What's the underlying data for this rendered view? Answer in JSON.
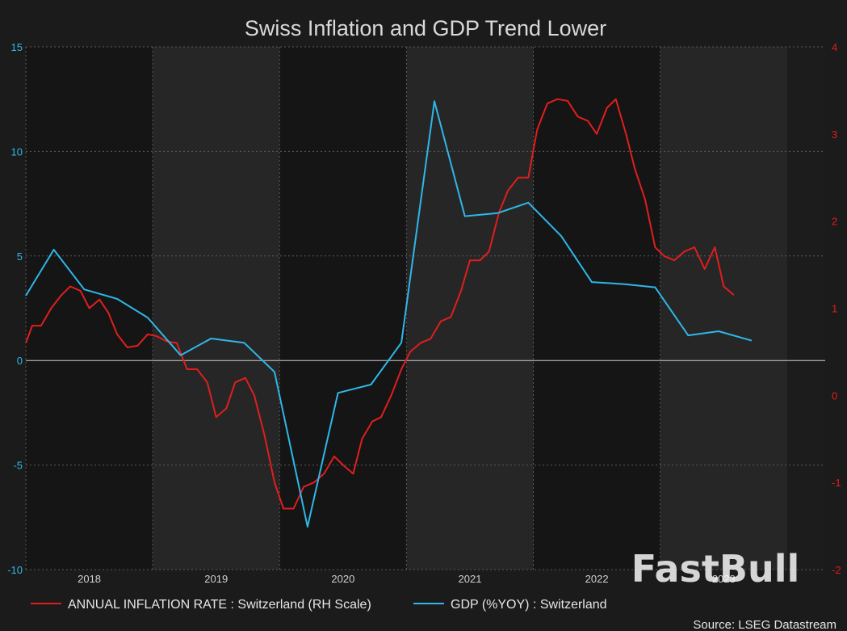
{
  "chart_data": {
    "type": "line",
    "title": "Swiss Inflation and GDP Trend Lower",
    "x_ticks": [
      "2018",
      "2019",
      "2020",
      "2021",
      "2022",
      "2023"
    ],
    "y_left": {
      "ticks": [
        "15",
        "10",
        "5",
        "0",
        "-5",
        "-10"
      ],
      "range": [
        -10,
        15
      ],
      "color": "#2fb7e8"
    },
    "y_right": {
      "ticks": [
        "4",
        "3",
        "2",
        "1",
        "0",
        "-1",
        "-2"
      ],
      "range": [
        -2,
        4
      ],
      "color": "#e01e1e"
    },
    "x_range": [
      2017.5,
      2023.8
    ],
    "series": [
      {
        "name": "ANNUAL INFLATION RATE : Switzerland (RH Scale)",
        "axis": "right",
        "color": "#e01e1e",
        "points": [
          [
            2017.5,
            0.6
          ],
          [
            2017.55,
            0.8
          ],
          [
            2017.62,
            0.8
          ],
          [
            2017.7,
            1.0
          ],
          [
            2017.78,
            1.15
          ],
          [
            2017.85,
            1.25
          ],
          [
            2017.93,
            1.2
          ],
          [
            2018.0,
            1.0
          ],
          [
            2018.08,
            1.1
          ],
          [
            2018.15,
            0.95
          ],
          [
            2018.22,
            0.7
          ],
          [
            2018.3,
            0.55
          ],
          [
            2018.38,
            0.57
          ],
          [
            2018.46,
            0.7
          ],
          [
            2018.53,
            0.68
          ],
          [
            2018.61,
            0.62
          ],
          [
            2018.69,
            0.6
          ],
          [
            2018.77,
            0.3
          ],
          [
            2018.85,
            0.3
          ],
          [
            2018.93,
            0.15
          ],
          [
            2019.0,
            -0.25
          ],
          [
            2019.08,
            -0.15
          ],
          [
            2019.15,
            0.15
          ],
          [
            2019.23,
            0.2
          ],
          [
            2019.3,
            0.0
          ],
          [
            2019.38,
            -0.45
          ],
          [
            2019.46,
            -1.0
          ],
          [
            2019.53,
            -1.3
          ],
          [
            2019.61,
            -1.3
          ],
          [
            2019.69,
            -1.05
          ],
          [
            2019.77,
            -1.0
          ],
          [
            2019.85,
            -0.9
          ],
          [
            2019.93,
            -0.7
          ],
          [
            2020.0,
            -0.8
          ],
          [
            2020.08,
            -0.9
          ],
          [
            2020.15,
            -0.5
          ],
          [
            2020.23,
            -0.3
          ],
          [
            2020.3,
            -0.25
          ],
          [
            2020.38,
            0.0
          ],
          [
            2020.46,
            0.3
          ],
          [
            2020.53,
            0.5
          ],
          [
            2020.61,
            0.6
          ],
          [
            2020.69,
            0.65
          ],
          [
            2020.77,
            0.85
          ],
          [
            2020.85,
            0.9
          ],
          [
            2020.93,
            1.2
          ],
          [
            2021.0,
            1.55
          ],
          [
            2021.08,
            1.55
          ],
          [
            2021.15,
            1.65
          ],
          [
            2021.23,
            2.1
          ],
          [
            2021.3,
            2.35
          ],
          [
            2021.38,
            2.5
          ],
          [
            2021.46,
            2.5
          ],
          [
            2021.53,
            3.05
          ],
          [
            2021.61,
            3.35
          ],
          [
            2021.69,
            3.4
          ],
          [
            2021.77,
            3.38
          ],
          [
            2021.85,
            3.2
          ],
          [
            2021.93,
            3.15
          ],
          [
            2022.0,
            3.0
          ],
          [
            2022.08,
            3.3
          ],
          [
            2022.15,
            3.4
          ],
          [
            2022.23,
            3.0
          ],
          [
            2022.3,
            2.6
          ],
          [
            2022.38,
            2.25
          ],
          [
            2022.46,
            1.7
          ],
          [
            2022.53,
            1.6
          ],
          [
            2022.61,
            1.55
          ],
          [
            2022.69,
            1.65
          ],
          [
            2022.77,
            1.7
          ],
          [
            2022.85,
            1.45
          ],
          [
            2022.93,
            1.7
          ],
          [
            2023.0,
            1.25
          ],
          [
            2023.08,
            1.15
          ]
        ]
      },
      {
        "name": "GDP (%YOY) : Switzerland",
        "axis": "left",
        "color": "#2fb7e8",
        "points": [
          [
            2017.5,
            3.1
          ],
          [
            2017.72,
            5.3
          ],
          [
            2017.96,
            3.4
          ],
          [
            2018.22,
            2.95
          ],
          [
            2018.46,
            2.05
          ],
          [
            2018.72,
            0.25
          ],
          [
            2018.96,
            1.05
          ],
          [
            2019.22,
            0.85
          ],
          [
            2019.46,
            -0.55
          ],
          [
            2019.72,
            -7.95
          ],
          [
            2019.96,
            -1.55
          ],
          [
            2020.22,
            -1.15
          ],
          [
            2020.46,
            0.85
          ],
          [
            2020.72,
            12.4
          ],
          [
            2020.96,
            6.9
          ],
          [
            2021.22,
            7.05
          ],
          [
            2021.46,
            7.55
          ],
          [
            2021.72,
            5.95
          ],
          [
            2021.96,
            3.75
          ],
          [
            2022.22,
            3.65
          ],
          [
            2022.46,
            3.5
          ],
          [
            2022.72,
            1.2
          ],
          [
            2022.96,
            1.4
          ],
          [
            2023.22,
            0.95
          ]
        ]
      }
    ],
    "legend": [
      {
        "label": "ANNUAL INFLATION RATE : Switzerland (RH Scale)",
        "color": "#e01e1e"
      },
      {
        "label": "GDP (%YOY) : Switzerland",
        "color": "#2fb7e8"
      }
    ],
    "source": "Source: LSEG Datastream",
    "watermark": "FastBull"
  }
}
